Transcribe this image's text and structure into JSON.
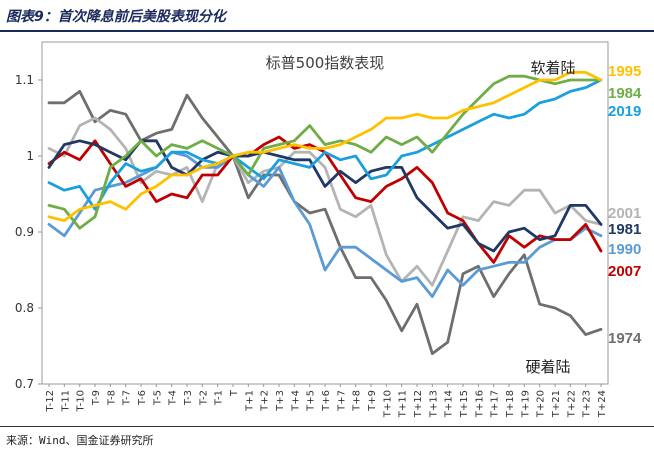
{
  "header": {
    "title": "图表9：首次降息前后美股表现分化"
  },
  "footer": {
    "source": "来源：Wind、国金证券研究所"
  },
  "chart_data": {
    "type": "line",
    "title": "标普500指数表现",
    "annotations": {
      "top": "软着陆",
      "bottom": "硬着陆"
    },
    "x": [
      "T-12",
      "T-11",
      "T-10",
      "T-9",
      "T-8",
      "T-7",
      "T-6",
      "T-5",
      "T-4",
      "T-3",
      "T-2",
      "T-1",
      "T",
      "T+1",
      "T+2",
      "T+3",
      "T+4",
      "T+5",
      "T+6",
      "T+7",
      "T+8",
      "T+9",
      "T+10",
      "T+11",
      "T+12",
      "T+13",
      "T+14",
      "T+15",
      "T+16",
      "T+17",
      "T+18",
      "T+19",
      "T+20",
      "T+21",
      "T+22",
      "T+23",
      "T+24"
    ],
    "ylim": [
      0.7,
      1.15
    ],
    "yticks": [
      0.7,
      0.8,
      0.9,
      1.0,
      1.1
    ],
    "ytick_labels": [
      "0.7",
      "0.8",
      "0.9",
      "1",
      "1.1"
    ],
    "grid": false,
    "legend": "right",
    "series": [
      {
        "name": "1974",
        "color": "#6e6e6e",
        "values": [
          1.07,
          1.07,
          1.085,
          1.045,
          1.06,
          1.055,
          1.02,
          1.03,
          1.035,
          1.08,
          1.05,
          1.025,
          1.0,
          0.945,
          0.975,
          0.975,
          0.94,
          0.925,
          0.93,
          0.88,
          0.84,
          0.84,
          0.81,
          0.77,
          0.805,
          0.74,
          0.755,
          0.845,
          0.855,
          0.815,
          0.845,
          0.87,
          0.805,
          0.8,
          0.79,
          0.765,
          0.772
        ]
      },
      {
        "name": "2001",
        "color": "#b4b4b4",
        "values": [
          1.01,
          1.0,
          1.04,
          1.05,
          1.035,
          1.01,
          0.965,
          0.98,
          0.975,
          0.985,
          0.94,
          0.99,
          1.0,
          0.965,
          0.98,
          0.985,
          1.005,
          1.005,
          0.985,
          0.93,
          0.92,
          0.935,
          0.87,
          0.835,
          0.855,
          0.83,
          0.875,
          0.92,
          0.915,
          0.94,
          0.935,
          0.955,
          0.955,
          0.925,
          0.935,
          0.915,
          0.91
        ]
      },
      {
        "name": "1990",
        "color": "#5b9bd5",
        "values": [
          0.91,
          0.895,
          0.925,
          0.955,
          0.96,
          0.965,
          0.975,
          0.985,
          1.005,
          1.0,
          0.985,
          0.985,
          1.0,
          0.975,
          0.96,
          0.985,
          0.94,
          0.91,
          0.85,
          0.88,
          0.88,
          0.865,
          0.85,
          0.835,
          0.84,
          0.815,
          0.85,
          0.83,
          0.85,
          0.855,
          0.86,
          0.86,
          0.88,
          0.89,
          0.89,
          0.905,
          0.895
        ]
      },
      {
        "name": "2007",
        "color": "#c00000",
        "values": [
          0.99,
          1.005,
          0.995,
          1.02,
          0.99,
          0.96,
          0.97,
          0.94,
          0.95,
          0.945,
          0.975,
          0.975,
          1.0,
          1.0,
          1.015,
          1.025,
          1.01,
          1.015,
          1.005,
          0.975,
          0.945,
          0.94,
          0.96,
          0.97,
          0.985,
          0.965,
          0.925,
          0.915,
          0.885,
          0.86,
          0.895,
          0.88,
          0.895,
          0.89,
          0.89,
          0.91,
          0.875
        ]
      },
      {
        "name": "1981",
        "color": "#1f3864",
        "values": [
          0.985,
          1.015,
          1.02,
          1.015,
          1.005,
          0.995,
          1.02,
          1.02,
          0.985,
          0.975,
          0.995,
          1.005,
          1.0,
          1.0,
          1.005,
          1.0,
          0.995,
          0.995,
          0.96,
          0.98,
          0.965,
          0.98,
          0.985,
          0.985,
          0.945,
          0.925,
          0.905,
          0.91,
          0.885,
          0.875,
          0.9,
          0.905,
          0.89,
          0.895,
          0.935,
          0.935,
          0.91
        ]
      },
      {
        "name": "2019",
        "color": "#1aa0dc",
        "values": [
          0.965,
          0.955,
          0.96,
          0.93,
          0.965,
          0.99,
          0.98,
          0.985,
          1.005,
          1.005,
          0.995,
          0.99,
          1.0,
          0.985,
          0.97,
          0.995,
          0.99,
          0.985,
          1.005,
          0.995,
          1.0,
          0.97,
          0.975,
          1.0,
          1.005,
          1.015,
          1.025,
          1.035,
          1.045,
          1.055,
          1.05,
          1.055,
          1.07,
          1.075,
          1.085,
          1.09,
          1.1
        ]
      },
      {
        "name": "1984",
        "color": "#70ad47",
        "values": [
          0.935,
          0.93,
          0.905,
          0.92,
          0.985,
          1.0,
          1.02,
          1.0,
          1.015,
          1.01,
          1.02,
          1.01,
          1.0,
          0.975,
          1.01,
          1.015,
          1.02,
          1.04,
          1.015,
          1.02,
          1.015,
          1.005,
          1.025,
          1.015,
          1.025,
          1.005,
          1.03,
          1.055,
          1.075,
          1.095,
          1.105,
          1.105,
          1.1,
          1.095,
          1.1,
          1.1,
          1.1
        ]
      },
      {
        "name": "1995",
        "color": "#ffc000",
        "values": [
          0.92,
          0.915,
          0.93,
          0.935,
          0.94,
          0.93,
          0.95,
          0.96,
          0.975,
          0.975,
          0.985,
          0.99,
          1.0,
          1.005,
          1.005,
          1.01,
          1.015,
          1.01,
          1.01,
          1.015,
          1.025,
          1.035,
          1.05,
          1.05,
          1.055,
          1.05,
          1.05,
          1.06,
          1.065,
          1.07,
          1.08,
          1.09,
          1.1,
          1.1,
          1.11,
          1.11,
          1.1
        ]
      }
    ]
  }
}
